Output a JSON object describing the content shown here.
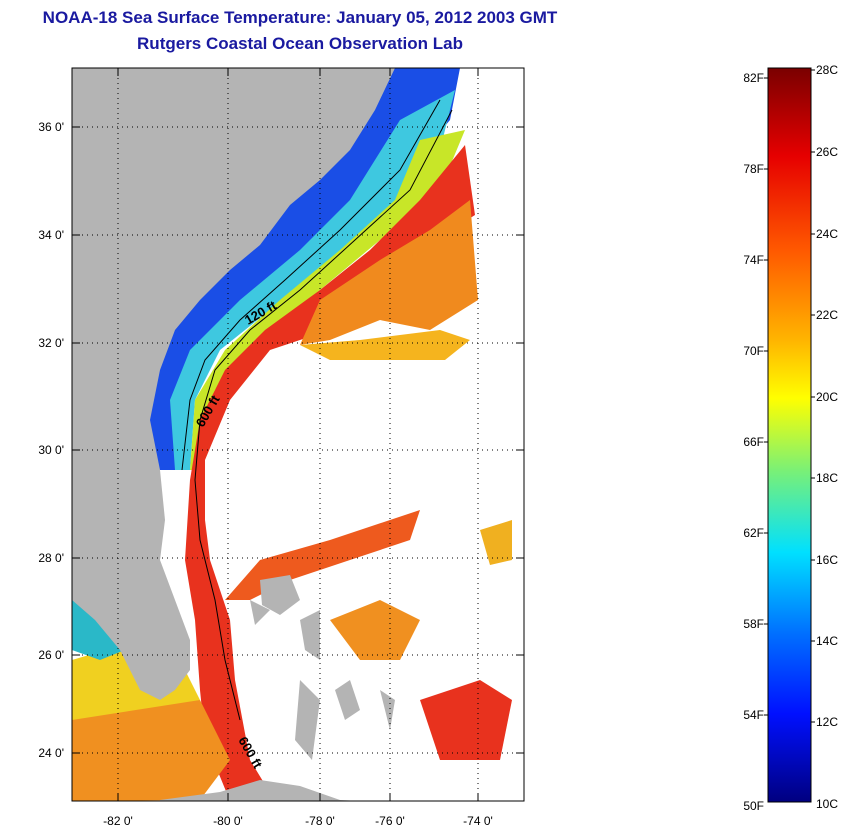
{
  "title": "NOAA-18 Sea Surface Temperature:  January 05, 2012 2003 GMT",
  "subtitle": "Rutgers Coastal Ocean Observation Lab",
  "map": {
    "lat_ticks": [
      "36 0'",
      "34 0'",
      "32 0'",
      "30 0'",
      "28 0'",
      "26 0'",
      "24 0'"
    ],
    "lon_ticks": [
      "-82 0'",
      "-80 0'",
      "-78 0'",
      "-76 0'",
      "-74 0'"
    ],
    "contours": {
      "c120": "120 ft",
      "c600a": "600 ft",
      "c600b": "600 ft"
    },
    "colors": {
      "land": "#b4b4b4",
      "no_data": "#ffffff",
      "gulf_stream": "#e8321e"
    }
  },
  "colorbar": {
    "f_labels": [
      "82F",
      "78F",
      "74F",
      "70F",
      "66F",
      "62F",
      "58F",
      "54F",
      "50F"
    ],
    "c_labels": [
      "28C",
      "26C",
      "24C",
      "22C",
      "20C",
      "18C",
      "16C",
      "14C",
      "12C",
      "10C"
    ],
    "colors": [
      "#800000",
      "#ff0000",
      "#ff8000",
      "#ffff00",
      "#80ff80",
      "#00ffff",
      "#0080ff",
      "#0000ff",
      "#00008f"
    ]
  }
}
